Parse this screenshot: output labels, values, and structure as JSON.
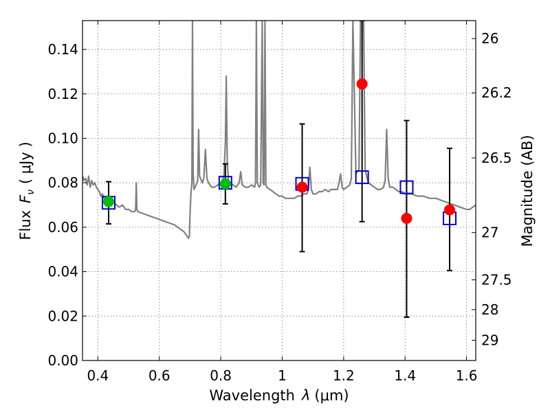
{
  "chart_data": {
    "type": "scatter",
    "xlabel_prefix": "Wavelength",
    "xlabel_symbol": "λ",
    "xlabel_unit": "(μm)",
    "ylabel_prefix": "Flux",
    "ylabel_symbol": "F",
    "ylabel_subscript": "ν",
    "ylabel_unit": "( μJy )",
    "y2label": "Magnitude (AB)",
    "xlim": [
      0.35,
      1.63
    ],
    "ylim": [
      0.0,
      0.153
    ],
    "grid": true,
    "x_ticks": [
      0.4,
      0.6,
      0.8,
      1.0,
      1.2,
      1.4,
      1.6
    ],
    "x_tick_labels": [
      "0.4",
      "0.6",
      "0.8",
      "1",
      "1.2",
      "1.4",
      "1.6"
    ],
    "y_ticks": [
      0.0,
      0.02,
      0.04,
      0.06,
      0.08,
      0.1,
      0.12,
      0.14
    ],
    "y_tick_labels": [
      "0.00",
      "0.02",
      "0.04",
      "0.06",
      "0.08",
      "0.10",
      "0.12",
      "0.14"
    ],
    "mag_ticks": [
      {
        "flux": 0.1449,
        "label": "26"
      },
      {
        "flux": 0.1205,
        "label": "26.2"
      },
      {
        "flux": 0.0912,
        "label": "26.5"
      },
      {
        "flux": 0.0576,
        "label": "27"
      },
      {
        "flux": 0.0363,
        "label": "27.5"
      },
      {
        "flux": 0.0229,
        "label": "28"
      },
      {
        "flux": 0.0091,
        "label": "29"
      }
    ],
    "colors": {
      "model": "#808080",
      "photometry_green": "#00bf00",
      "photometry_red": "#ff0000",
      "synthetic": "#0000cc",
      "errorbar": "#000000"
    },
    "series": [
      {
        "kind": "model-spectrum",
        "points": [
          [
            0.35,
            0.083
          ],
          [
            0.355,
            0.081
          ],
          [
            0.36,
            0.082
          ],
          [
            0.365,
            0.079
          ],
          [
            0.37,
            0.083
          ],
          [
            0.375,
            0.078
          ],
          [
            0.38,
            0.081
          ],
          [
            0.385,
            0.079
          ],
          [
            0.39,
            0.08
          ],
          [
            0.395,
            0.078
          ],
          [
            0.4,
            0.077
          ],
          [
            0.405,
            0.076
          ],
          [
            0.41,
            0.074
          ],
          [
            0.415,
            0.075
          ],
          [
            0.42,
            0.073
          ],
          [
            0.43,
            0.072
          ],
          [
            0.44,
            0.071
          ],
          [
            0.45,
            0.072
          ],
          [
            0.46,
            0.07
          ],
          [
            0.47,
            0.069
          ],
          [
            0.48,
            0.07
          ],
          [
            0.49,
            0.068
          ],
          [
            0.5,
            0.068
          ],
          [
            0.51,
            0.067
          ],
          [
            0.52,
            0.067
          ],
          [
            0.523,
            0.068
          ],
          [
            0.525,
            0.08
          ],
          [
            0.527,
            0.068
          ],
          [
            0.53,
            0.067
          ],
          [
            0.55,
            0.066
          ],
          [
            0.57,
            0.065
          ],
          [
            0.59,
            0.064
          ],
          [
            0.61,
            0.063
          ],
          [
            0.63,
            0.062
          ],
          [
            0.65,
            0.061
          ],
          [
            0.67,
            0.059
          ],
          [
            0.68,
            0.058
          ],
          [
            0.69,
            0.056
          ],
          [
            0.695,
            0.055
          ],
          [
            0.698,
            0.056
          ],
          [
            0.7,
            0.066
          ],
          [
            0.703,
            0.075
          ],
          [
            0.706,
            0.08
          ],
          [
            0.708,
            0.153
          ],
          [
            0.71,
            0.085
          ],
          [
            0.713,
            0.077
          ],
          [
            0.72,
            0.079
          ],
          [
            0.725,
            0.081
          ],
          [
            0.728,
            0.104
          ],
          [
            0.731,
            0.083
          ],
          [
            0.74,
            0.08
          ],
          [
            0.745,
            0.082
          ],
          [
            0.75,
            0.095
          ],
          [
            0.755,
            0.082
          ],
          [
            0.76,
            0.08
          ],
          [
            0.77,
            0.078
          ],
          [
            0.78,
            0.078
          ],
          [
            0.79,
            0.079
          ],
          [
            0.8,
            0.08
          ],
          [
            0.805,
            0.081
          ],
          [
            0.81,
            0.083
          ],
          [
            0.815,
            0.098
          ],
          [
            0.818,
            0.128
          ],
          [
            0.821,
            0.09
          ],
          [
            0.825,
            0.081
          ],
          [
            0.84,
            0.079
          ],
          [
            0.85,
            0.078
          ],
          [
            0.86,
            0.08
          ],
          [
            0.865,
            0.085
          ],
          [
            0.87,
            0.079
          ],
          [
            0.88,
            0.078
          ],
          [
            0.89,
            0.078
          ],
          [
            0.9,
            0.079
          ],
          [
            0.91,
            0.078
          ],
          [
            0.913,
            0.08
          ],
          [
            0.916,
            0.153
          ],
          [
            0.919,
            0.08
          ],
          [
            0.925,
            0.078
          ],
          [
            0.93,
            0.079
          ],
          [
            0.935,
            0.153
          ],
          [
            0.938,
            0.08
          ],
          [
            0.941,
            0.079
          ],
          [
            0.944,
            0.153
          ],
          [
            0.947,
            0.079
          ],
          [
            0.95,
            0.078
          ],
          [
            0.96,
            0.077
          ],
          [
            0.97,
            0.076
          ],
          [
            0.98,
            0.075
          ],
          [
            0.99,
            0.074
          ],
          [
            1.0,
            0.074
          ],
          [
            1.01,
            0.073
          ],
          [
            1.02,
            0.073
          ],
          [
            1.03,
            0.073
          ],
          [
            1.04,
            0.073
          ],
          [
            1.05,
            0.074
          ],
          [
            1.06,
            0.074
          ],
          [
            1.07,
            0.075
          ],
          [
            1.08,
            0.075
          ],
          [
            1.085,
            0.077
          ],
          [
            1.09,
            0.087
          ],
          [
            1.095,
            0.077
          ],
          [
            1.1,
            0.075
          ],
          [
            1.11,
            0.075
          ],
          [
            1.12,
            0.076
          ],
          [
            1.13,
            0.076
          ],
          [
            1.14,
            0.077
          ],
          [
            1.15,
            0.076
          ],
          [
            1.16,
            0.077
          ],
          [
            1.17,
            0.077
          ],
          [
            1.18,
            0.077
          ],
          [
            1.185,
            0.08
          ],
          [
            1.19,
            0.084
          ],
          [
            1.195,
            0.078
          ],
          [
            1.2,
            0.077
          ],
          [
            1.21,
            0.078
          ],
          [
            1.22,
            0.079
          ],
          [
            1.225,
            0.082
          ],
          [
            1.23,
            0.153
          ],
          [
            1.24,
            0.084
          ],
          [
            1.25,
            0.086
          ],
          [
            1.255,
            0.153
          ],
          [
            1.26,
            0.153
          ],
          [
            1.265,
            0.153
          ],
          [
            1.27,
            0.086
          ],
          [
            1.28,
            0.08
          ],
          [
            1.29,
            0.079
          ],
          [
            1.3,
            0.078
          ],
          [
            1.31,
            0.077
          ],
          [
            1.32,
            0.077
          ],
          [
            1.33,
            0.078
          ],
          [
            1.335,
            0.081
          ],
          [
            1.34,
            0.104
          ],
          [
            1.345,
            0.082
          ],
          [
            1.35,
            0.078
          ],
          [
            1.36,
            0.078
          ],
          [
            1.37,
            0.077
          ],
          [
            1.38,
            0.076
          ],
          [
            1.39,
            0.076
          ],
          [
            1.4,
            0.075
          ],
          [
            1.42,
            0.075
          ],
          [
            1.44,
            0.074
          ],
          [
            1.46,
            0.074
          ],
          [
            1.48,
            0.073
          ],
          [
            1.5,
            0.073
          ],
          [
            1.52,
            0.072
          ],
          [
            1.54,
            0.071
          ],
          [
            1.56,
            0.07
          ],
          [
            1.58,
            0.069
          ],
          [
            1.6,
            0.068
          ],
          [
            1.61,
            0.068
          ],
          [
            1.62,
            0.069
          ],
          [
            1.63,
            0.07
          ]
        ]
      },
      {
        "kind": "synthetic-flux",
        "marker": "open-square",
        "points": [
          [
            0.435,
            0.071
          ],
          [
            0.815,
            0.08
          ],
          [
            1.065,
            0.0795
          ],
          [
            1.26,
            0.0825
          ],
          [
            1.405,
            0.078
          ],
          [
            1.545,
            0.064
          ]
        ]
      },
      {
        "kind": "observed-flux",
        "marker": "filled-circle",
        "points": [
          {
            "x": 0.435,
            "y": 0.0715,
            "err_low": 0.0615,
            "err_high": 0.0805,
            "color": "green"
          },
          {
            "x": 0.815,
            "y": 0.0795,
            "err_low": 0.0705,
            "err_high": 0.0885,
            "color": "green"
          },
          {
            "x": 1.065,
            "y": 0.078,
            "err_low": 0.049,
            "err_high": 0.1065,
            "color": "red"
          },
          {
            "x": 1.26,
            "y": 0.1245,
            "err_low": 0.0625,
            "err_high": 0.153,
            "color": "red"
          },
          {
            "x": 1.405,
            "y": 0.064,
            "err_low": 0.0195,
            "err_high": 0.108,
            "color": "red"
          },
          {
            "x": 1.545,
            "y": 0.0678,
            "err_low": 0.0405,
            "err_high": 0.0955,
            "color": "red"
          }
        ]
      }
    ]
  }
}
